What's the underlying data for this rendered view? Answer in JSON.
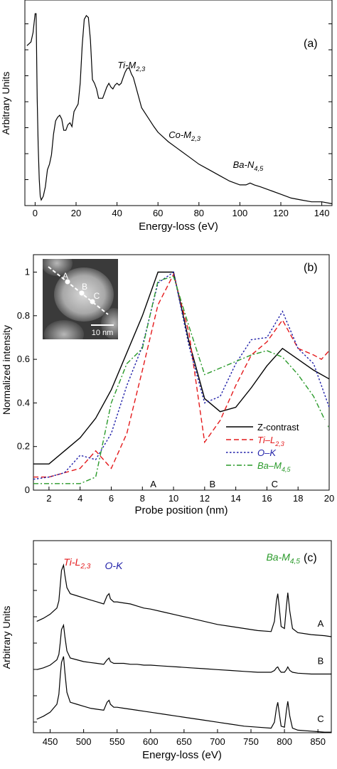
{
  "chart_data": [
    {
      "type": "line",
      "panel_label": "(a)",
      "xlabel": "Energy-loss (eV)",
      "ylabel": "Arbitrary Units",
      "xlim": [
        -5,
        145
      ],
      "ylim": [
        0,
        1
      ],
      "xticks": [
        0,
        20,
        40,
        60,
        80,
        100,
        120,
        140
      ],
      "grid": false,
      "annotations": [
        {
          "text": "Ti-M",
          "sub": "2,3",
          "x": 47,
          "y": 0.71,
          "color": "#000000"
        },
        {
          "text": "Co-M",
          "sub": "2,3",
          "x": 73,
          "y": 0.34,
          "color": "#000000"
        },
        {
          "text": "Ba-N",
          "sub": "4,5",
          "x": 104,
          "y": 0.18,
          "color": "#000000"
        }
      ],
      "series": [
        {
          "color": "#000000",
          "x": [
            -4,
            -2,
            -1,
            0,
            0.5,
            1,
            1.5,
            2,
            2.5,
            3,
            4,
            5,
            6,
            7,
            8,
            9,
            10,
            11,
            12,
            13,
            14,
            15,
            16,
            17,
            18,
            19,
            20,
            21,
            22,
            23,
            24,
            25,
            26,
            27,
            28,
            29,
            30,
            31,
            32,
            33,
            34,
            35,
            36,
            37,
            38,
            39,
            40,
            41,
            42,
            43,
            44,
            45,
            46,
            47,
            48,
            49,
            50,
            52,
            55,
            58,
            60,
            65,
            70,
            75,
            80,
            85,
            90,
            95,
            100,
            103,
            105,
            107,
            110,
            115,
            120,
            125,
            130,
            135,
            140,
            145
          ],
          "y": [
            0.83,
            0.85,
            0.9,
            1.0,
            1.0,
            0.55,
            0.3,
            0.12,
            0.03,
            0.01,
            0.03,
            0.08,
            0.17,
            0.2,
            0.25,
            0.36,
            0.43,
            0.45,
            0.46,
            0.44,
            0.38,
            0.38,
            0.41,
            0.42,
            0.4,
            0.48,
            0.5,
            0.52,
            0.63,
            0.83,
            0.97,
            0.99,
            0.98,
            0.86,
            0.65,
            0.63,
            0.6,
            0.55,
            0.55,
            0.55,
            0.58,
            0.61,
            0.63,
            0.61,
            0.6,
            0.62,
            0.63,
            0.62,
            0.63,
            0.66,
            0.69,
            0.71,
            0.71,
            0.68,
            0.66,
            0.62,
            0.58,
            0.5,
            0.45,
            0.4,
            0.37,
            0.32,
            0.28,
            0.24,
            0.2,
            0.17,
            0.14,
            0.11,
            0.09,
            0.09,
            0.1,
            0.09,
            0.08,
            0.06,
            0.04,
            0.02,
            0.01,
            0.0,
            0.0,
            -0.01
          ]
        }
      ]
    },
    {
      "type": "line",
      "panel_label": "(b)",
      "xlabel": "Probe position (nm)",
      "ylabel": "Normalized intensity",
      "xlim": [
        1,
        20
      ],
      "ylim": [
        0,
        1.08
      ],
      "xticks": [
        2,
        4,
        6,
        8,
        10,
        12,
        14,
        16,
        18,
        20
      ],
      "yticks": [
        0,
        0.2,
        0.4,
        0.6,
        0.8,
        1
      ],
      "grid": false,
      "legend_position": "bottom-right",
      "legend": [
        {
          "text": "Z-contrast",
          "sub": "",
          "color": "#000000",
          "dash": "solid"
        },
        {
          "text": "Ti–L",
          "sub": "2,3",
          "color": "#e41a1c",
          "dash": "dashed"
        },
        {
          "text": "O–K",
          "sub": "",
          "color": "#1f1fa8",
          "dash": "dotted"
        },
        {
          "text": "Ba–M",
          "sub": "4,5",
          "color": "#2a9a2a",
          "dash": "dashdot"
        }
      ],
      "region_labels": [
        {
          "text": "A",
          "x": 8.7
        },
        {
          "text": "B",
          "x": 12.5
        },
        {
          "text": "C",
          "x": 16.5
        }
      ],
      "inset": {
        "scale_label": "10 nm",
        "points": [
          "A",
          "B",
          "C"
        ]
      },
      "series": [
        {
          "color": "#000000",
          "x": [
            1,
            2,
            3,
            4,
            5,
            6,
            7,
            8,
            9,
            10,
            11,
            12,
            13,
            14,
            15,
            16,
            17,
            18,
            19,
            20
          ],
          "y": [
            0.12,
            0.12,
            0.18,
            0.24,
            0.33,
            0.46,
            0.63,
            0.8,
            1.0,
            1.0,
            0.68,
            0.42,
            0.36,
            0.38,
            0.47,
            0.57,
            0.65,
            0.6,
            0.55,
            0.51
          ]
        },
        {
          "color": "#e41a1c",
          "x": [
            1,
            2,
            3,
            4,
            5,
            6,
            7,
            8,
            9,
            10,
            11,
            12,
            13,
            14,
            15,
            16,
            17,
            18,
            19,
            19.5,
            20
          ],
          "y": [
            0.06,
            0.06,
            0.08,
            0.1,
            0.18,
            0.1,
            0.26,
            0.55,
            0.85,
            0.99,
            0.72,
            0.22,
            0.32,
            0.48,
            0.62,
            0.68,
            0.78,
            0.65,
            0.62,
            0.6,
            0.64
          ]
        },
        {
          "color": "#1f1fa8",
          "x": [
            1,
            2,
            3,
            4,
            5,
            6,
            7,
            8,
            9,
            10,
            11,
            12,
            13,
            14,
            15,
            16,
            17,
            18,
            19,
            20
          ],
          "y": [
            0.05,
            0.06,
            0.08,
            0.16,
            0.14,
            0.26,
            0.48,
            0.66,
            0.95,
            1.0,
            0.66,
            0.4,
            0.43,
            0.58,
            0.69,
            0.7,
            0.82,
            0.65,
            0.58,
            0.38
          ]
        },
        {
          "color": "#2a9a2a",
          "x": [
            1,
            2,
            3,
            4,
            5,
            6,
            7,
            8,
            9,
            10,
            11,
            12,
            13,
            14,
            15,
            16,
            17,
            18,
            19,
            20
          ],
          "y": [
            0.03,
            0.03,
            0.03,
            0.03,
            0.06,
            0.4,
            0.58,
            0.65,
            0.96,
            0.98,
            0.75,
            0.53,
            0.56,
            0.59,
            0.62,
            0.64,
            0.61,
            0.53,
            0.43,
            0.28
          ]
        }
      ]
    },
    {
      "type": "line",
      "panel_label": "(c)",
      "xlabel": "Energy-loss (eV)",
      "ylabel": "Arbitrary Units",
      "xlim": [
        425,
        870
      ],
      "xticks": [
        450,
        500,
        550,
        600,
        650,
        700,
        750,
        800,
        850
      ],
      "grid": false,
      "edge_labels": [
        {
          "text": "Ti-L",
          "sub": "2,3",
          "color": "#e41a1c",
          "x": 470
        },
        {
          "text": "O-K",
          "sub": "",
          "color": "#1f1fa8",
          "x": 545
        },
        {
          "text": "Ba-M",
          "sub": "4,5",
          "color": "#2a9a2a",
          "x": 798
        }
      ],
      "series": [
        {
          "name": "A",
          "color": "#000000",
          "x": [
            430,
            440,
            450,
            455,
            460,
            463,
            465,
            467,
            470,
            472,
            475,
            480,
            490,
            500,
            510,
            520,
            530,
            535,
            538,
            540,
            545,
            550,
            560,
            570,
            580,
            590,
            600,
            620,
            640,
            660,
            680,
            700,
            720,
            740,
            760,
            780,
            785,
            788,
            790,
            792,
            795,
            800,
            803,
            805,
            808,
            812,
            820,
            840,
            860,
            870
          ],
          "y": [
            0.45,
            0.48,
            0.52,
            0.55,
            0.58,
            0.65,
            0.8,
            0.95,
            1.0,
            0.9,
            0.78,
            0.72,
            0.7,
            0.68,
            0.66,
            0.64,
            0.62,
            0.7,
            0.72,
            0.67,
            0.64,
            0.64,
            0.63,
            0.62,
            0.6,
            0.58,
            0.57,
            0.54,
            0.51,
            0.48,
            0.45,
            0.42,
            0.4,
            0.38,
            0.36,
            0.35,
            0.45,
            0.65,
            0.72,
            0.6,
            0.4,
            0.38,
            0.6,
            0.73,
            0.55,
            0.38,
            0.34,
            0.32,
            0.31,
            0.3
          ]
        },
        {
          "name": "B",
          "color": "#000000",
          "x": [
            430,
            440,
            450,
            455,
            460,
            463,
            465,
            467,
            470,
            472,
            475,
            480,
            490,
            500,
            510,
            520,
            530,
            535,
            538,
            540,
            545,
            550,
            560,
            570,
            580,
            590,
            600,
            620,
            640,
            660,
            680,
            700,
            720,
            740,
            760,
            780,
            785,
            788,
            790,
            792,
            795,
            800,
            803,
            805,
            808,
            812,
            820,
            840,
            860,
            870
          ],
          "y": [
            0.45,
            0.47,
            0.5,
            0.53,
            0.56,
            0.62,
            0.75,
            0.9,
            0.95,
            0.82,
            0.66,
            0.58,
            0.56,
            0.54,
            0.53,
            0.52,
            0.51,
            0.56,
            0.58,
            0.54,
            0.52,
            0.52,
            0.52,
            0.51,
            0.51,
            0.5,
            0.5,
            0.49,
            0.48,
            0.47,
            0.46,
            0.45,
            0.44,
            0.43,
            0.42,
            0.42,
            0.44,
            0.47,
            0.48,
            0.45,
            0.42,
            0.42,
            0.45,
            0.48,
            0.44,
            0.42,
            0.41,
            0.4,
            0.4,
            0.4
          ]
        },
        {
          "name": "C",
          "color": "#000000",
          "x": [
            430,
            440,
            450,
            455,
            460,
            463,
            465,
            467,
            470,
            472,
            475,
            480,
            490,
            500,
            510,
            520,
            530,
            535,
            538,
            540,
            545,
            550,
            560,
            570,
            580,
            590,
            600,
            620,
            640,
            660,
            680,
            700,
            720,
            740,
            760,
            780,
            785,
            788,
            790,
            792,
            795,
            800,
            803,
            805,
            808,
            812,
            820,
            840,
            860,
            870
          ],
          "y": [
            0.45,
            0.48,
            0.52,
            0.56,
            0.6,
            0.7,
            0.88,
            1.02,
            1.08,
            0.92,
            0.72,
            0.62,
            0.6,
            0.58,
            0.56,
            0.55,
            0.54,
            0.62,
            0.64,
            0.6,
            0.57,
            0.57,
            0.56,
            0.55,
            0.54,
            0.53,
            0.52,
            0.5,
            0.48,
            0.46,
            0.44,
            0.42,
            0.4,
            0.38,
            0.37,
            0.36,
            0.42,
            0.56,
            0.62,
            0.52,
            0.38,
            0.37,
            0.54,
            0.63,
            0.48,
            0.36,
            0.34,
            0.33,
            0.32,
            0.32
          ]
        }
      ]
    }
  ]
}
